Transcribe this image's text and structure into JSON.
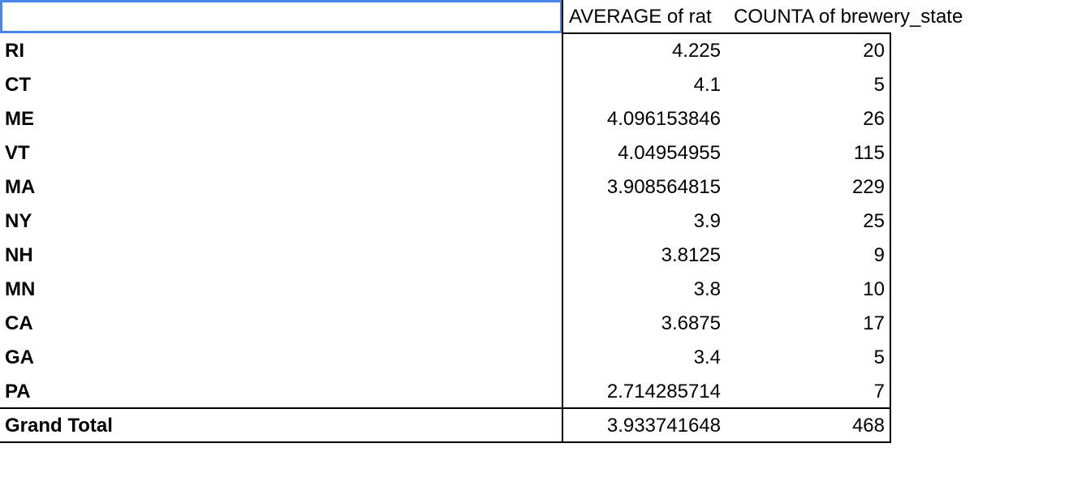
{
  "pivot": {
    "header": {
      "corner": "",
      "avg_label": "AVERAGE of rat",
      "count_label": "COUNTA of brewery_state"
    },
    "rows": [
      {
        "state": "RI",
        "avg": "4.225",
        "count": "20"
      },
      {
        "state": "CT",
        "avg": "4.1",
        "count": "5"
      },
      {
        "state": "ME",
        "avg": "4.096153846",
        "count": "26"
      },
      {
        "state": "VT",
        "avg": "4.04954955",
        "count": "115"
      },
      {
        "state": "MA",
        "avg": "3.908564815",
        "count": "229"
      },
      {
        "state": "NY",
        "avg": "3.9",
        "count": "25"
      },
      {
        "state": "NH",
        "avg": "3.8125",
        "count": "9"
      },
      {
        "state": "MN",
        "avg": "3.8",
        "count": "10"
      },
      {
        "state": "CA",
        "avg": "3.6875",
        "count": "17"
      },
      {
        "state": "GA",
        "avg": "3.4",
        "count": "5"
      },
      {
        "state": "PA",
        "avg": "2.714285714",
        "count": "7"
      }
    ],
    "total": {
      "label": "Grand Total",
      "avg": "3.933741648",
      "count": "468"
    }
  },
  "colors": {
    "selection_border": "#4a86e8",
    "grid_line": "#000000"
  }
}
